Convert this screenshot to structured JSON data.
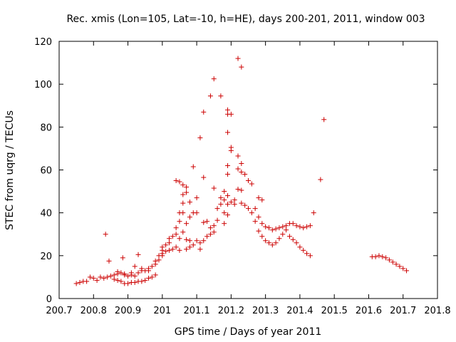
{
  "chart_data": {
    "type": "scatter",
    "title": "Rec. xmis (Lon=105, Lat=-10, h=HE), days 200-201, 2011, window 003",
    "xlabel": "GPS time / Days of year 2011",
    "ylabel": "STEC from uqrg / TECUs",
    "xlim": [
      200.7,
      201.8
    ],
    "ylim": [
      0,
      120
    ],
    "xticks": [
      "200.7",
      "200.8",
      "200.9",
      "201",
      "201.1",
      "201.2",
      "201.3",
      "201.4",
      "201.5",
      "201.6",
      "201.7",
      "201.8"
    ],
    "yticks": [
      "0",
      "20",
      "40",
      "60",
      "80",
      "100",
      "120"
    ],
    "grid": false,
    "marker": "+",
    "color": "#cc0000",
    "points": [
      [
        200.75,
        7
      ],
      [
        200.76,
        7.5
      ],
      [
        200.77,
        8
      ],
      [
        200.78,
        8
      ],
      [
        200.79,
        10
      ],
      [
        200.8,
        9.5
      ],
      [
        200.81,
        8.5
      ],
      [
        200.82,
        10
      ],
      [
        200.83,
        9.5
      ],
      [
        200.84,
        10
      ],
      [
        200.85,
        10.5
      ],
      [
        200.86,
        11
      ],
      [
        200.87,
        11.5
      ],
      [
        200.88,
        12
      ],
      [
        200.89,
        11
      ],
      [
        200.9,
        10.5
      ],
      [
        200.91,
        11
      ],
      [
        200.92,
        10.5
      ],
      [
        200.93,
        12
      ],
      [
        200.94,
        13
      ],
      [
        200.95,
        13
      ],
      [
        200.96,
        14
      ],
      [
        200.97,
        15
      ],
      [
        200.98,
        16
      ],
      [
        200.99,
        18
      ],
      [
        200.86,
        9
      ],
      [
        200.87,
        8.5
      ],
      [
        200.88,
        8
      ],
      [
        200.89,
        7
      ],
      [
        200.9,
        7
      ],
      [
        200.91,
        7.5
      ],
      [
        200.92,
        7.5
      ],
      [
        200.93,
        8
      ],
      [
        200.94,
        8
      ],
      [
        200.95,
        8.5
      ],
      [
        200.96,
        9.5
      ],
      [
        200.97,
        10
      ],
      [
        200.98,
        11
      ],
      [
        200.87,
        12.5
      ],
      [
        200.89,
        11.5
      ],
      [
        200.91,
        12
      ],
      [
        200.92,
        15
      ],
      [
        200.94,
        14
      ],
      [
        200.96,
        13
      ],
      [
        200.98,
        17.5
      ],
      [
        200.99,
        20
      ],
      [
        200.93,
        20.5
      ],
      [
        200.835,
        30
      ],
      [
        200.845,
        17.5
      ],
      [
        200.885,
        19
      ],
      [
        201.0,
        20
      ],
      [
        201.0,
        21
      ],
      [
        201.0,
        22.5
      ],
      [
        201.0,
        24
      ],
      [
        201.01,
        22
      ],
      [
        201.01,
        25
      ],
      [
        201.02,
        22.5
      ],
      [
        201.02,
        26
      ],
      [
        201.02,
        28
      ],
      [
        201.03,
        23
      ],
      [
        201.03,
        29
      ],
      [
        201.04,
        30
      ],
      [
        201.04,
        24
      ],
      [
        201.04,
        33
      ],
      [
        201.04,
        55
      ],
      [
        201.05,
        36
      ],
      [
        201.05,
        40
      ],
      [
        201.05,
        22.5
      ],
      [
        201.05,
        28
      ],
      [
        201.05,
        54.5
      ],
      [
        201.06,
        31
      ],
      [
        201.06,
        40
      ],
      [
        201.06,
        44.5
      ],
      [
        201.06,
        48.5
      ],
      [
        201.06,
        53
      ],
      [
        201.07,
        23
      ],
      [
        201.07,
        27.5
      ],
      [
        201.07,
        35
      ],
      [
        201.07,
        49.5
      ],
      [
        201.07,
        52
      ],
      [
        201.08,
        24
      ],
      [
        201.08,
        27
      ],
      [
        201.08,
        38
      ],
      [
        201.08,
        45
      ],
      [
        201.09,
        25
      ],
      [
        201.09,
        40
      ],
      [
        201.09,
        61.5
      ],
      [
        201.1,
        27
      ],
      [
        201.1,
        40
      ],
      [
        201.1,
        47
      ],
      [
        201.11,
        75
      ],
      [
        201.11,
        23
      ],
      [
        201.11,
        26
      ],
      [
        201.12,
        27
      ],
      [
        201.12,
        35.5
      ],
      [
        201.12,
        56.5
      ],
      [
        201.12,
        87
      ],
      [
        201.13,
        29
      ],
      [
        201.13,
        36
      ],
      [
        201.14,
        30
      ],
      [
        201.14,
        33
      ],
      [
        201.14,
        94.5
      ],
      [
        201.15,
        31
      ],
      [
        201.15,
        34
      ],
      [
        201.15,
        51.5
      ],
      [
        201.15,
        102.5
      ],
      [
        201.16,
        36.5
      ],
      [
        201.16,
        42
      ],
      [
        201.17,
        44
      ],
      [
        201.17,
        47
      ],
      [
        201.17,
        94.5
      ],
      [
        201.18,
        35
      ],
      [
        201.18,
        40
      ],
      [
        201.18,
        46
      ],
      [
        201.18,
        50
      ],
      [
        201.19,
        39
      ],
      [
        201.19,
        44
      ],
      [
        201.19,
        48
      ],
      [
        201.19,
        58
      ],
      [
        201.19,
        62
      ],
      [
        201.19,
        77.5
      ],
      [
        201.19,
        86
      ],
      [
        201.19,
        88
      ],
      [
        201.2,
        45
      ],
      [
        201.2,
        70.5
      ],
      [
        201.2,
        69
      ],
      [
        201.2,
        86
      ],
      [
        201.21,
        44
      ],
      [
        201.21,
        46
      ],
      [
        201.22,
        51
      ],
      [
        201.22,
        60.5
      ],
      [
        201.22,
        66.5
      ],
      [
        201.22,
        112
      ],
      [
        201.23,
        44.5
      ],
      [
        201.23,
        50.5
      ],
      [
        201.23,
        59
      ],
      [
        201.23,
        63
      ],
      [
        201.23,
        108
      ],
      [
        201.24,
        43.5
      ],
      [
        201.24,
        58
      ],
      [
        201.25,
        42
      ],
      [
        201.25,
        55
      ],
      [
        201.26,
        40
      ],
      [
        201.26,
        53.5
      ],
      [
        201.27,
        36
      ],
      [
        201.27,
        42
      ],
      [
        201.28,
        31.5
      ],
      [
        201.28,
        38
      ],
      [
        201.28,
        47
      ],
      [
        201.29,
        29
      ],
      [
        201.29,
        35
      ],
      [
        201.29,
        46
      ],
      [
        201.3,
        27
      ],
      [
        201.3,
        33.5
      ],
      [
        201.31,
        26
      ],
      [
        201.31,
        33
      ],
      [
        201.32,
        25
      ],
      [
        201.32,
        32
      ],
      [
        201.33,
        26
      ],
      [
        201.33,
        32.5
      ],
      [
        201.34,
        28
      ],
      [
        201.34,
        33
      ],
      [
        201.35,
        30
      ],
      [
        201.35,
        33.5
      ],
      [
        201.36,
        32
      ],
      [
        201.36,
        34
      ],
      [
        201.37,
        35
      ],
      [
        201.37,
        29
      ],
      [
        201.38,
        27.5
      ],
      [
        201.38,
        35
      ],
      [
        201.39,
        26
      ],
      [
        201.39,
        34
      ],
      [
        201.4,
        24
      ],
      [
        201.4,
        33.5
      ],
      [
        201.41,
        22.5
      ],
      [
        201.41,
        33
      ],
      [
        201.42,
        21
      ],
      [
        201.42,
        33.5
      ],
      [
        201.43,
        20
      ],
      [
        201.43,
        34
      ],
      [
        201.44,
        40
      ],
      [
        201.46,
        55.5
      ],
      [
        201.47,
        83.5
      ],
      [
        201.61,
        19.5
      ],
      [
        201.62,
        19.5
      ],
      [
        201.63,
        20
      ],
      [
        201.64,
        19.5
      ],
      [
        201.65,
        19
      ],
      [
        201.66,
        18
      ],
      [
        201.67,
        17
      ],
      [
        201.68,
        16
      ],
      [
        201.69,
        15
      ],
      [
        201.7,
        14
      ],
      [
        201.71,
        13
      ]
    ]
  }
}
